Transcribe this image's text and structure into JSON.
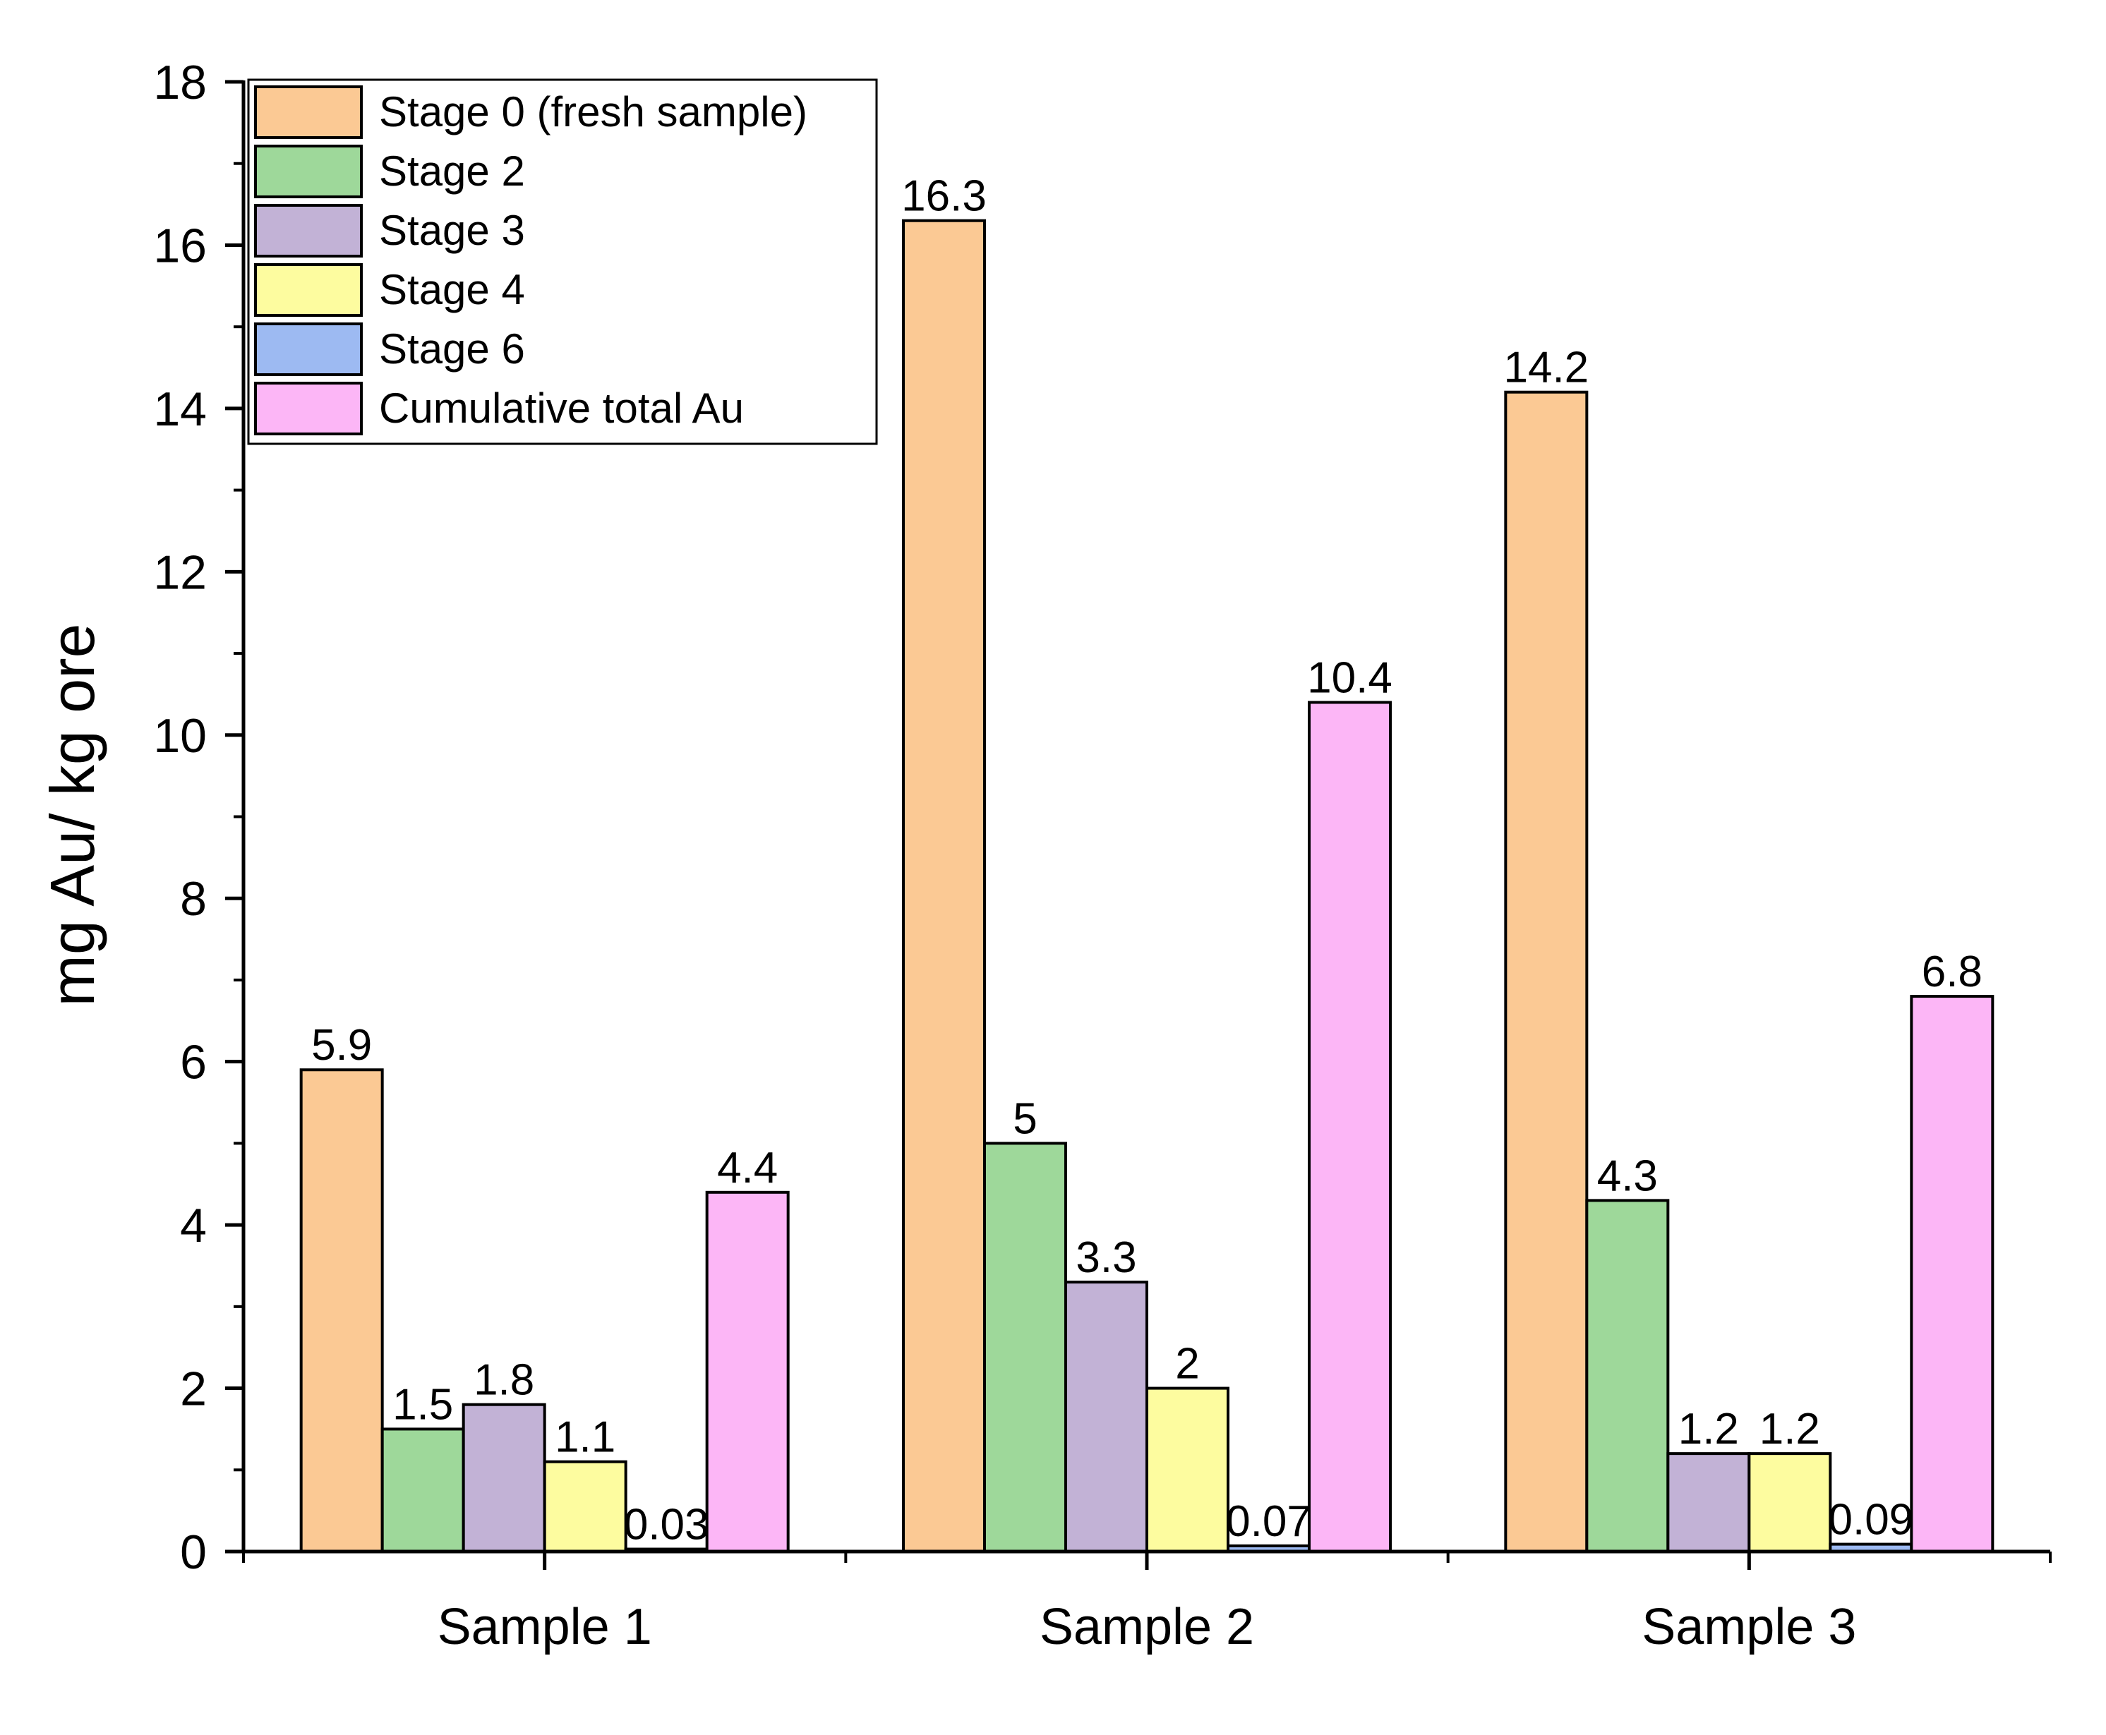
{
  "chart_data": {
    "type": "bar",
    "title": "",
    "xlabel": "",
    "ylabel": "mg Au/ kg ore",
    "ylim": [
      0,
      18
    ],
    "yticks": [
      "0",
      "2",
      "4",
      "6",
      "8",
      "10",
      "12",
      "14",
      "16",
      "18"
    ],
    "categories": [
      "Sample 1",
      "Sample 2",
      "Sample 3"
    ],
    "series": [
      {
        "name": "Stage 0 (fresh sample)",
        "color": "#fbc994",
        "values": [
          5.9,
          16.3,
          14.2
        ],
        "labels": [
          "5.9",
          "16.3",
          "14.2"
        ]
      },
      {
        "name": "Stage 2",
        "color": "#9ed89a",
        "values": [
          1.5,
          5,
          4.3
        ],
        "labels": [
          "1.5",
          "5",
          "4.3"
        ]
      },
      {
        "name": "Stage 3",
        "color": "#c2b2d6",
        "values": [
          1.8,
          3.3,
          1.2
        ],
        "labels": [
          "1.8",
          "3.3",
          "1.2"
        ]
      },
      {
        "name": "Stage 4",
        "color": "#fdfc9f",
        "values": [
          1.1,
          2,
          1.2
        ],
        "labels": [
          "1.1",
          "2",
          "1.2"
        ]
      },
      {
        "name": "Stage 6",
        "color": "#9dbaf2",
        "values": [
          0.03,
          0.07,
          0.09
        ],
        "labels": [
          "0.03",
          "0.07",
          "0.09"
        ]
      },
      {
        "name": "Cumulative total Au",
        "color": "#fcb6f6",
        "values": [
          4.4,
          10.4,
          6.8
        ],
        "labels": [
          "4.4",
          "10.4",
          "6.8"
        ]
      }
    ],
    "legend": "top-left",
    "grid": false
  }
}
